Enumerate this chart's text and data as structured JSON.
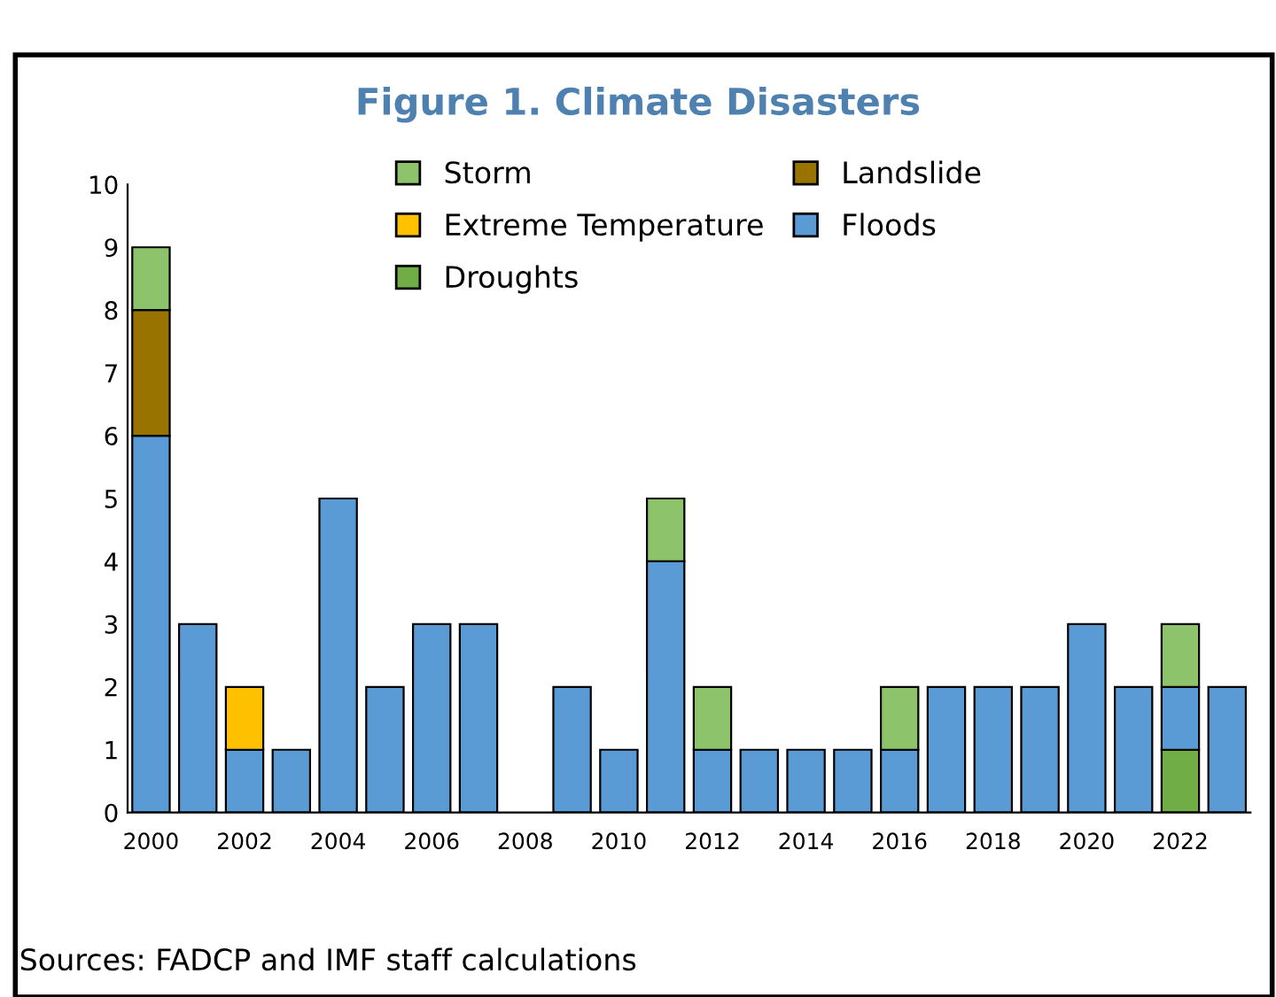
{
  "chart_data": {
    "type": "bar",
    "title": "Figure 1. Climate Disasters",
    "stacked": true,
    "categories": [
      "2000",
      null,
      "2002",
      null,
      "2004",
      null,
      "2006",
      null,
      "2008",
      null,
      "2010",
      null,
      "2012",
      null,
      "2014",
      null,
      "2016",
      null,
      "2018",
      null,
      "2020",
      null,
      "2022",
      null
    ],
    "series": [
      {
        "name": "Droughts",
        "color": "#70ad47",
        "values": [
          null,
          null,
          null,
          null,
          null,
          null,
          null,
          null,
          null,
          null,
          null,
          null,
          null,
          null,
          null,
          null,
          null,
          null,
          null,
          null,
          null,
          null,
          1,
          null
        ]
      },
      {
        "name": "Floods",
        "color": "#5b9bd5",
        "values": [
          6,
          3,
          1,
          1,
          5,
          2,
          3,
          3,
          null,
          2,
          1,
          4,
          1,
          1,
          1,
          1,
          1,
          2,
          2,
          2,
          3,
          2,
          1,
          2
        ]
      },
      {
        "name": "Extreme Temperature",
        "color": "#ffc000",
        "values": [
          null,
          null,
          1,
          null,
          null,
          null,
          null,
          null,
          null,
          null,
          null,
          null,
          null,
          null,
          null,
          null,
          null,
          null,
          null,
          null,
          null,
          null,
          null,
          null
        ]
      },
      {
        "name": "Landslide",
        "color": "#997300",
        "values": [
          2,
          null,
          null,
          null,
          null,
          null,
          null,
          null,
          null,
          null,
          null,
          null,
          null,
          null,
          null,
          null,
          null,
          null,
          null,
          null,
          null,
          null,
          null,
          null
        ]
      },
      {
        "name": "Storm",
        "color": "#8dc36a",
        "values": [
          1,
          null,
          null,
          null,
          null,
          null,
          null,
          null,
          null,
          null,
          null,
          1,
          1,
          null,
          null,
          null,
          1,
          null,
          null,
          null,
          null,
          null,
          1,
          null
        ]
      }
    ],
    "ylim": [
      0,
      10
    ],
    "yticks": [
      0,
      1,
      2,
      3,
      4,
      5,
      6,
      7,
      8,
      9,
      10
    ],
    "grid": false,
    "legend": "top",
    "annotations": [
      "Sources: FADCP and IMF staff calculations"
    ]
  }
}
